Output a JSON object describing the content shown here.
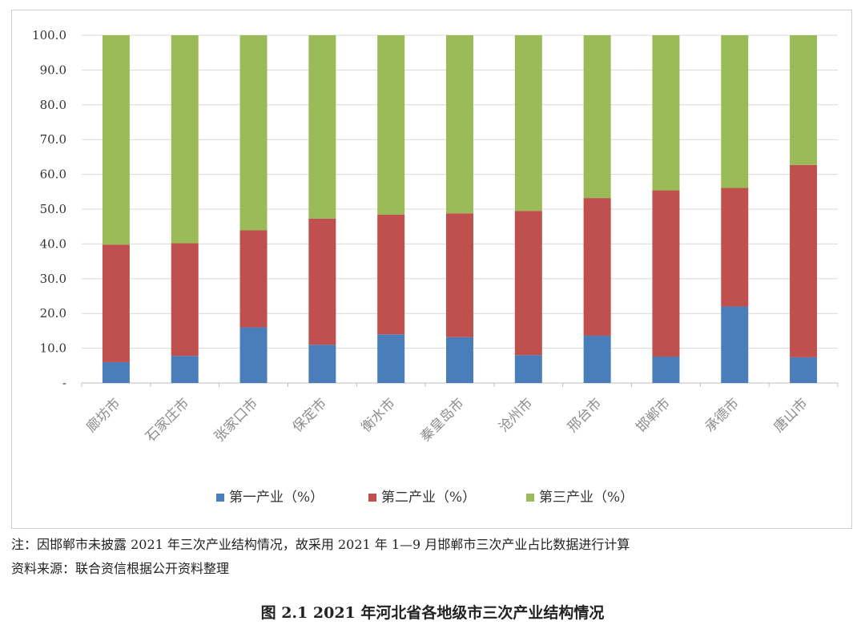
{
  "chart_data": {
    "type": "bar",
    "stacked": true,
    "categories": [
      "廊坊市",
      "石家庄市",
      "张家口市",
      "保定市",
      "衡水市",
      "秦皇岛市",
      "沧州市",
      "邢台市",
      "邯郸市",
      "承德市",
      "唐山市"
    ],
    "series": [
      {
        "name": "第一产业（%）",
        "color": "#4a7ebb",
        "values": [
          6.0,
          7.8,
          16.0,
          11.0,
          14.0,
          13.2,
          8.0,
          13.6,
          7.6,
          22.0,
          7.4
        ]
      },
      {
        "name": "第二产业（%）",
        "color": "#c0504d",
        "values": [
          33.8,
          32.4,
          27.9,
          36.3,
          34.4,
          35.6,
          41.5,
          39.6,
          47.8,
          34.1,
          55.3
        ]
      },
      {
        "name": "第三产业（%）",
        "color": "#9bbb59",
        "values": [
          60.2,
          59.8,
          56.1,
          52.7,
          51.6,
          51.2,
          50.5,
          46.8,
          44.6,
          43.9,
          37.3
        ]
      }
    ],
    "ylim": [
      0,
      100
    ],
    "yticks": [
      "-",
      "10.0",
      "20.0",
      "30.0",
      "40.0",
      "50.0",
      "60.0",
      "70.0",
      "80.0",
      "90.0",
      "100.0"
    ],
    "grid": true,
    "legend_position": "bottom"
  },
  "notes": {
    "note1": "注：因邯郸市未披露 2021 年三次产业结构情况，故采用 2021 年 1—9 月邯郸市三次产业占比数据进行计算",
    "source": "资料来源：联合资信根据公开资料整理"
  },
  "caption": "图 2.1    2021 年河北省各地级市三次产业结构情况"
}
